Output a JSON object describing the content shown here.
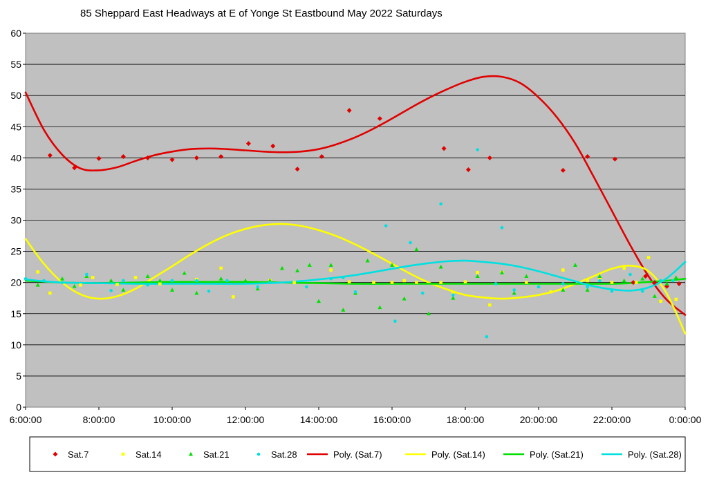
{
  "chart_data": {
    "type": "scatter",
    "title": "85 Sheppard East Headways at E of Yonge St Eastbound May 2022  Saturdays",
    "xlabel": "",
    "ylabel": "",
    "xlim": [
      "6:00:00",
      "0:00:00"
    ],
    "ylim": [
      0,
      60
    ],
    "y_ticks": [
      0,
      5,
      10,
      15,
      20,
      25,
      30,
      35,
      40,
      45,
      50,
      55,
      60
    ],
    "x_ticks": [
      "6:00:00",
      "8:00:00",
      "10:00:00",
      "12:00:00",
      "14:00:00",
      "16:00:00",
      "18:00:00",
      "20:00:00",
      "22:00:00",
      "0:00:00"
    ],
    "grid": "horizontal",
    "plot_background": "#c0c0c0",
    "legend_position": "bottom",
    "series": [
      {
        "name": "Sat.7",
        "kind": "points",
        "marker": "diamond",
        "color": "#e00000",
        "points": [
          [
            "6:40",
            40.4
          ],
          [
            "7:20",
            38.4
          ],
          [
            "8:00",
            39.9
          ],
          [
            "8:40",
            40.2
          ],
          [
            "9:20",
            40.0
          ],
          [
            "10:00",
            39.7
          ],
          [
            "10:40",
            40.0
          ],
          [
            "11:20",
            40.2
          ],
          [
            "12:05",
            42.3
          ],
          [
            "12:45",
            41.9
          ],
          [
            "13:25",
            38.2
          ],
          [
            "14:05",
            40.2
          ],
          [
            "14:50",
            47.6
          ],
          [
            "15:40",
            46.3
          ],
          [
            "17:25",
            41.5
          ],
          [
            "18:05",
            38.1
          ],
          [
            "18:40",
            40.0
          ],
          [
            "20:40",
            38.0
          ],
          [
            "21:20",
            40.2
          ],
          [
            "22:05",
            39.8
          ],
          [
            "22:35",
            20.0
          ],
          [
            "22:55",
            21.0
          ],
          [
            "23:10",
            20.0
          ],
          [
            "23:30",
            19.4
          ],
          [
            "23:50",
            19.8
          ]
        ]
      },
      {
        "name": "Sat.14",
        "kind": "points",
        "marker": "square",
        "color": "#ffff00",
        "points": [
          [
            "6:20",
            21.7
          ],
          [
            "6:40",
            18.3
          ],
          [
            "7:30",
            19.6
          ],
          [
            "7:50",
            20.8
          ],
          [
            "8:30",
            19.7
          ],
          [
            "9:00",
            20.8
          ],
          [
            "9:40",
            19.8
          ],
          [
            "10:40",
            20.5
          ],
          [
            "11:20",
            22.3
          ],
          [
            "11:40",
            17.7
          ],
          [
            "12:40",
            20.3
          ],
          [
            "13:20",
            20.0
          ],
          [
            "14:20",
            22.0
          ],
          [
            "14:50",
            20.1
          ],
          [
            "15:30",
            20.0
          ],
          [
            "16:00",
            20.0
          ],
          [
            "16:20",
            20.3
          ],
          [
            "16:40",
            20.0
          ],
          [
            "17:20",
            20.0
          ],
          [
            "17:40",
            18.3
          ],
          [
            "18:00",
            20.1
          ],
          [
            "18:20",
            21.6
          ],
          [
            "18:40",
            16.4
          ],
          [
            "19:00",
            21.6
          ],
          [
            "19:40",
            20.0
          ],
          [
            "20:20",
            18.5
          ],
          [
            "20:40",
            22.0
          ],
          [
            "21:20",
            20.3
          ],
          [
            "21:40",
            20.7
          ],
          [
            "22:00",
            20.0
          ],
          [
            "22:20",
            22.3
          ],
          [
            "22:40",
            20.0
          ],
          [
            "23:00",
            24.0
          ],
          [
            "23:20",
            17.0
          ],
          [
            "23:45",
            17.3
          ]
        ]
      },
      {
        "name": "Sat.21",
        "kind": "points",
        "marker": "triangle",
        "color": "#00e000",
        "points": [
          [
            "6:20",
            19.6
          ],
          [
            "7:00",
            20.6
          ],
          [
            "7:20",
            19.4
          ],
          [
            "7:40",
            21.0
          ],
          [
            "8:20",
            20.3
          ],
          [
            "8:40",
            18.8
          ],
          [
            "9:20",
            21.0
          ],
          [
            "9:40",
            20.3
          ],
          [
            "10:00",
            18.8
          ],
          [
            "10:20",
            21.5
          ],
          [
            "10:40",
            18.3
          ],
          [
            "11:20",
            20.6
          ],
          [
            "12:00",
            20.3
          ],
          [
            "12:20",
            19.0
          ],
          [
            "12:40",
            20.3
          ],
          [
            "13:00",
            22.3
          ],
          [
            "13:25",
            21.9
          ],
          [
            "13:45",
            22.8
          ],
          [
            "14:00",
            17.0
          ],
          [
            "14:20",
            22.8
          ],
          [
            "14:40",
            15.6
          ],
          [
            "15:00",
            18.3
          ],
          [
            "15:20",
            23.5
          ],
          [
            "15:40",
            16.0
          ],
          [
            "16:00",
            22.8
          ],
          [
            "16:20",
            17.4
          ],
          [
            "16:40",
            25.3
          ],
          [
            "17:00",
            15.0
          ],
          [
            "17:20",
            22.5
          ],
          [
            "17:40",
            17.5
          ],
          [
            "18:20",
            21.0
          ],
          [
            "19:00",
            21.6
          ],
          [
            "19:20",
            18.3
          ],
          [
            "19:40",
            21.0
          ],
          [
            "20:40",
            18.8
          ],
          [
            "21:00",
            22.8
          ],
          [
            "21:20",
            18.8
          ],
          [
            "21:40",
            21.0
          ],
          [
            "22:20",
            20.3
          ],
          [
            "22:50",
            20.6
          ],
          [
            "23:10",
            17.8
          ],
          [
            "23:30",
            19.8
          ],
          [
            "23:45",
            20.8
          ]
        ]
      },
      {
        "name": "Sat.28",
        "kind": "points",
        "marker": "circle",
        "color": "#00e0e0",
        "points": [
          [
            "6:00",
            20.6
          ],
          [
            "6:30",
            20.3
          ],
          [
            "7:00",
            20.0
          ],
          [
            "7:40",
            21.3
          ],
          [
            "8:20",
            18.7
          ],
          [
            "8:40",
            20.3
          ],
          [
            "9:20",
            19.6
          ],
          [
            "10:00",
            20.3
          ],
          [
            "10:40",
            20.3
          ],
          [
            "11:00",
            18.6
          ],
          [
            "11:30",
            20.3
          ],
          [
            "12:20",
            19.3
          ],
          [
            "12:40",
            20.0
          ],
          [
            "13:40",
            19.3
          ],
          [
            "14:20",
            20.6
          ],
          [
            "14:40",
            20.8
          ],
          [
            "15:00",
            18.5
          ],
          [
            "15:50",
            29.1
          ],
          [
            "16:05",
            13.8
          ],
          [
            "16:30",
            26.4
          ],
          [
            "16:50",
            18.3
          ],
          [
            "17:20",
            32.6
          ],
          [
            "17:40",
            18.0
          ],
          [
            "18:20",
            41.3
          ],
          [
            "18:35",
            11.3
          ],
          [
            "18:50",
            19.8
          ],
          [
            "19:00",
            28.8
          ],
          [
            "19:20",
            18.8
          ],
          [
            "20:00",
            19.3
          ],
          [
            "20:40",
            19.8
          ],
          [
            "21:20",
            19.3
          ],
          [
            "21:40",
            20.3
          ],
          [
            "22:00",
            18.6
          ],
          [
            "22:30",
            21.3
          ],
          [
            "22:50",
            18.6
          ],
          [
            "23:20",
            20.3
          ],
          [
            "23:40",
            20.3
          ]
        ]
      },
      {
        "name": "Poly. (Sat.7)",
        "kind": "trendline",
        "color": "#e00000",
        "points": [
          [
            "6:00",
            50.5
          ],
          [
            "6:30",
            44.5
          ],
          [
            "7:00",
            40.5
          ],
          [
            "7:30",
            38.3
          ],
          [
            "8:00",
            38.0
          ],
          [
            "8:30",
            38.5
          ],
          [
            "9:00",
            39.5
          ],
          [
            "9:30",
            40.4
          ],
          [
            "10:00",
            41.0
          ],
          [
            "10:30",
            41.4
          ],
          [
            "11:00",
            41.5
          ],
          [
            "11:30",
            41.4
          ],
          [
            "12:00",
            41.2
          ],
          [
            "12:30",
            41.0
          ],
          [
            "13:00",
            40.9
          ],
          [
            "13:30",
            41.0
          ],
          [
            "14:00",
            41.4
          ],
          [
            "14:30",
            42.2
          ],
          [
            "15:00",
            43.3
          ],
          [
            "15:30",
            44.7
          ],
          [
            "16:00",
            46.3
          ],
          [
            "16:30",
            48.0
          ],
          [
            "17:00",
            49.6
          ],
          [
            "17:30",
            51.0
          ],
          [
            "18:00",
            52.2
          ],
          [
            "18:30",
            53.0
          ],
          [
            "19:00",
            53.0
          ],
          [
            "19:30",
            52.0
          ],
          [
            "20:00",
            49.7
          ],
          [
            "20:30",
            46.5
          ],
          [
            "21:00",
            42.3
          ],
          [
            "21:30",
            37.0
          ],
          [
            "22:00",
            31.5
          ],
          [
            "22:30",
            26.0
          ],
          [
            "23:00",
            21.0
          ],
          [
            "23:30",
            17.2
          ],
          [
            "0:00",
            14.8
          ]
        ]
      },
      {
        "name": "Poly. (Sat.14)",
        "kind": "trendline",
        "color": "#ffff00",
        "points": [
          [
            "6:00",
            27.0
          ],
          [
            "6:30",
            23.0
          ],
          [
            "7:00",
            20.0
          ],
          [
            "7:30",
            18.1
          ],
          [
            "8:00",
            17.4
          ],
          [
            "8:30",
            17.8
          ],
          [
            "9:00",
            19.0
          ],
          [
            "9:30",
            20.8
          ],
          [
            "10:00",
            22.6
          ],
          [
            "10:30",
            24.5
          ],
          [
            "11:00",
            26.2
          ],
          [
            "11:30",
            27.6
          ],
          [
            "12:00",
            28.6
          ],
          [
            "12:30",
            29.2
          ],
          [
            "13:00",
            29.4
          ],
          [
            "13:30",
            29.1
          ],
          [
            "14:00",
            28.4
          ],
          [
            "14:30",
            27.4
          ],
          [
            "15:00",
            26.1
          ],
          [
            "15:30",
            24.6
          ],
          [
            "16:00",
            23.0
          ],
          [
            "16:30",
            21.4
          ],
          [
            "17:00",
            20.0
          ],
          [
            "17:30",
            18.9
          ],
          [
            "18:00",
            18.0
          ],
          [
            "18:30",
            17.6
          ],
          [
            "19:00",
            17.4
          ],
          [
            "19:30",
            17.6
          ],
          [
            "20:00",
            18.0
          ],
          [
            "20:30",
            18.7
          ],
          [
            "21:00",
            19.8
          ],
          [
            "21:30",
            21.0
          ],
          [
            "22:00",
            22.2
          ],
          [
            "22:30",
            22.7
          ],
          [
            "23:00",
            21.8
          ],
          [
            "23:30",
            18.2
          ],
          [
            "0:00",
            11.8
          ]
        ]
      },
      {
        "name": "Poly. (Sat.21)",
        "kind": "trendline",
        "color": "#00e000",
        "points": [
          [
            "6:00",
            20.3
          ],
          [
            "7:00",
            20.0
          ],
          [
            "8:00",
            19.9
          ],
          [
            "9:00",
            20.0
          ],
          [
            "10:00",
            20.1
          ],
          [
            "11:00",
            20.1
          ],
          [
            "12:00",
            20.1
          ],
          [
            "13:00",
            20.0
          ],
          [
            "14:00",
            19.9
          ],
          [
            "15:00",
            19.8
          ],
          [
            "16:00",
            19.8
          ],
          [
            "17:00",
            19.8
          ],
          [
            "18:00",
            19.8
          ],
          [
            "19:00",
            19.8
          ],
          [
            "20:00",
            19.8
          ],
          [
            "21:00",
            19.8
          ],
          [
            "22:00",
            19.8
          ],
          [
            "22:30",
            19.9
          ],
          [
            "23:00",
            20.1
          ],
          [
            "23:30",
            20.3
          ],
          [
            "0:00",
            20.6
          ]
        ]
      },
      {
        "name": "Poly. (Sat.28)",
        "kind": "trendline",
        "color": "#00e0e0",
        "points": [
          [
            "6:00",
            20.5
          ],
          [
            "6:30",
            20.2
          ],
          [
            "7:00",
            20.0
          ],
          [
            "8:00",
            19.9
          ],
          [
            "9:00",
            19.8
          ],
          [
            "10:00",
            19.8
          ],
          [
            "11:00",
            19.8
          ],
          [
            "12:00",
            19.8
          ],
          [
            "13:00",
            20.0
          ],
          [
            "14:00",
            20.5
          ],
          [
            "15:00",
            21.2
          ],
          [
            "16:00",
            22.2
          ],
          [
            "16:30",
            22.7
          ],
          [
            "17:00",
            23.1
          ],
          [
            "17:30",
            23.4
          ],
          [
            "18:00",
            23.5
          ],
          [
            "18:30",
            23.3
          ],
          [
            "19:00",
            23.0
          ],
          [
            "19:30",
            22.5
          ],
          [
            "20:00",
            21.8
          ],
          [
            "20:30",
            21.0
          ],
          [
            "21:00",
            20.2
          ],
          [
            "21:30",
            19.4
          ],
          [
            "22:00",
            18.9
          ],
          [
            "22:30",
            18.7
          ],
          [
            "23:00",
            19.2
          ],
          [
            "23:30",
            20.7
          ],
          [
            "0:00",
            23.3
          ]
        ]
      }
    ]
  }
}
